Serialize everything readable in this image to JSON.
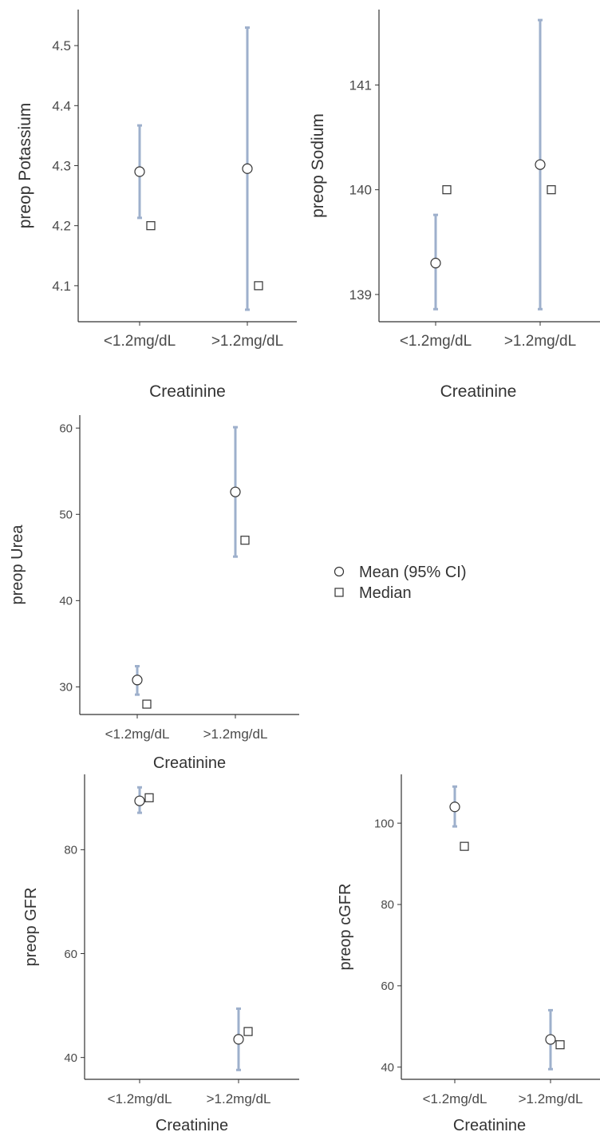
{
  "legend": {
    "mean_label": "Mean (95% CI)",
    "median_label": "Median"
  },
  "colors": {
    "ci": "#9eb0cc",
    "axis": "#333333",
    "marker_stroke": "#333333",
    "marker_fill": "#ffffff"
  },
  "chart_data": [
    {
      "type": "scatter",
      "title": "",
      "xlabel": "Creatinine",
      "ylabel": "preop Potassium",
      "categories": [
        "<1.2mg/dL",
        ">1.2mg/dL"
      ],
      "ylim": [
        4.04,
        4.56
      ],
      "yticks": [
        4.1,
        4.2,
        4.3,
        4.4,
        4.5
      ],
      "mean": [
        4.29,
        4.295
      ],
      "ci_low": [
        4.213,
        4.06
      ],
      "ci_high": [
        4.367,
        4.53
      ],
      "median": [
        4.2,
        4.1
      ]
    },
    {
      "type": "scatter",
      "title": "",
      "xlabel": "Creatinine",
      "ylabel": "preop Sodium",
      "categories": [
        "<1.2mg/dL",
        ">1.2mg/dL"
      ],
      "ylim": [
        138.74,
        141.72
      ],
      "yticks": [
        139,
        140,
        141
      ],
      "mean": [
        139.3,
        140.24
      ],
      "ci_low": [
        138.86,
        138.86
      ],
      "ci_high": [
        139.76,
        141.62
      ],
      "median": [
        140,
        140
      ]
    },
    {
      "type": "scatter",
      "title": "",
      "xlabel": "Creatinine",
      "ylabel": "preop Urea",
      "categories": [
        "<1.2mg/dL",
        ">1.2mg/dL"
      ],
      "ylim": [
        26.8,
        61.5
      ],
      "yticks": [
        30,
        40,
        50,
        60
      ],
      "mean": [
        30.8,
        52.6
      ],
      "ci_low": [
        29.1,
        45.1
      ],
      "ci_high": [
        32.4,
        60.1
      ],
      "median": [
        28,
        47
      ]
    },
    {
      "type": "scatter",
      "title": "",
      "xlabel": "Creatinine",
      "ylabel": "preop GFR",
      "categories": [
        "<1.2mg/dL",
        ">1.2mg/dL"
      ],
      "ylim": [
        35.8,
        94.5
      ],
      "yticks": [
        40,
        60,
        80
      ],
      "mean": [
        89.4,
        43.5
      ],
      "ci_low": [
        87.1,
        37.6
      ],
      "ci_high": [
        92.0,
        49.4
      ],
      "median": [
        90,
        45
      ]
    },
    {
      "type": "scatter",
      "title": "",
      "xlabel": "Creatinine",
      "ylabel": "preop cGFR",
      "categories": [
        "<1.2mg/dL",
        ">1.2mg/dL"
      ],
      "ylim": [
        37.0,
        112.0
      ],
      "yticks": [
        40,
        60,
        80,
        100
      ],
      "mean": [
        104.0,
        46.8
      ],
      "ci_low": [
        99.2,
        39.5
      ],
      "ci_high": [
        109.0,
        54.0
      ],
      "median": [
        94.3,
        45.5
      ]
    }
  ]
}
